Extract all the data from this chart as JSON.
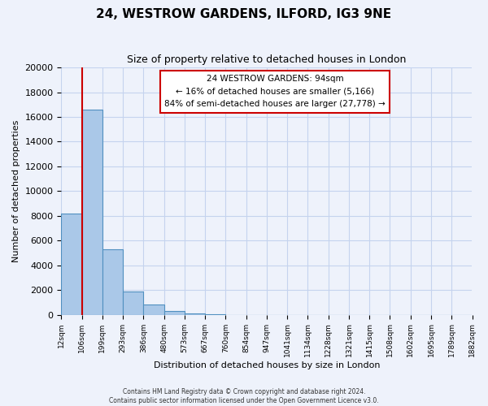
{
  "title": "24, WESTROW GARDENS, ILFORD, IG3 9NE",
  "subtitle": "Size of property relative to detached houses in London",
  "xlabel": "Distribution of detached houses by size in London",
  "ylabel": "Number of detached properties",
  "bar_color": "#aac8e8",
  "bar_edge_color": "#5090c0",
  "background_color": "#eef2fb",
  "grid_color": "#c5d3ee",
  "annotation_box_color": "#ffffff",
  "annotation_box_edge": "#cc0000",
  "red_line_color": "#cc0000",
  "bin_labels": [
    "12sqm",
    "106sqm",
    "199sqm",
    "293sqm",
    "386sqm",
    "480sqm",
    "573sqm",
    "667sqm",
    "760sqm",
    "854sqm",
    "947sqm",
    "1041sqm",
    "1134sqm",
    "1228sqm",
    "1321sqm",
    "1415sqm",
    "1508sqm",
    "1602sqm",
    "1695sqm",
    "1789sqm",
    "1882sqm"
  ],
  "bar_heights": [
    8200,
    16600,
    5300,
    1850,
    800,
    300,
    130,
    60,
    0,
    0,
    0,
    0,
    0,
    0,
    0,
    0,
    0,
    0,
    0,
    0
  ],
  "ylim": [
    0,
    20000
  ],
  "yticks": [
    0,
    2000,
    4000,
    6000,
    8000,
    10000,
    12000,
    14000,
    16000,
    18000,
    20000
  ],
  "property_size": "94sqm",
  "property_name": "24 WESTROW GARDENS",
  "pct_smaller": "16%",
  "n_smaller": "5,166",
  "pct_larger": "84%",
  "n_larger": "27,778",
  "red_line_x": 1.0,
  "footer1": "Contains HM Land Registry data © Crown copyright and database right 2024.",
  "footer2": "Contains public sector information licensed under the Open Government Licence v3.0."
}
